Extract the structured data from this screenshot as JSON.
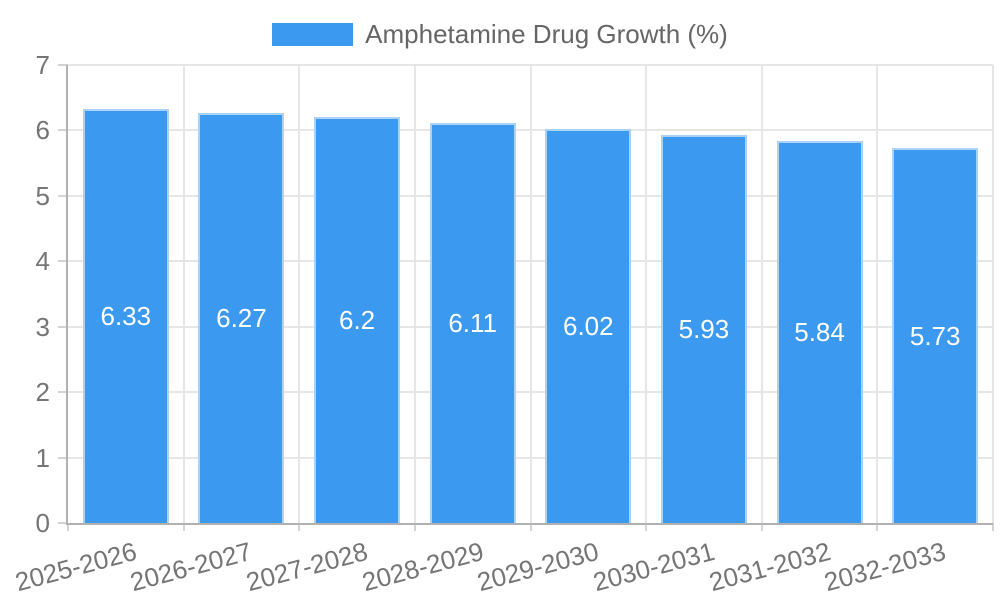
{
  "legend": {
    "label": "Amphetamine Drug Growth (%)"
  },
  "chart_data": {
    "type": "bar",
    "title": "",
    "xlabel": "",
    "ylabel": "",
    "series_name": "Amphetamine Drug Growth (%)",
    "categories": [
      "2025-2026",
      "2026-2027",
      "2027-2028",
      "2028-2029",
      "2029-2030",
      "2030-2031",
      "2031-2032",
      "2032-2033"
    ],
    "values": [
      6.33,
      6.27,
      6.2,
      6.11,
      6.02,
      5.93,
      5.84,
      5.73
    ],
    "value_labels": [
      "6.33",
      "6.27",
      "6.2",
      "6.11",
      "6.02",
      "5.93",
      "5.84",
      "5.73"
    ],
    "ylim": [
      0,
      7
    ],
    "y_ticks": [
      0,
      1,
      2,
      3,
      4,
      5,
      6,
      7
    ],
    "grid": true,
    "legend_position": "top",
    "colors": {
      "bar_fill": "#3b99f0",
      "bar_border": "#a9d2f6",
      "value_label_text": "#ffffff",
      "axis_text": "#757575",
      "legend_text": "#666666",
      "gridline": "#e6e6e6",
      "axis_line": "#b1b1b1",
      "tick_mark": "#d4d4d4"
    }
  }
}
